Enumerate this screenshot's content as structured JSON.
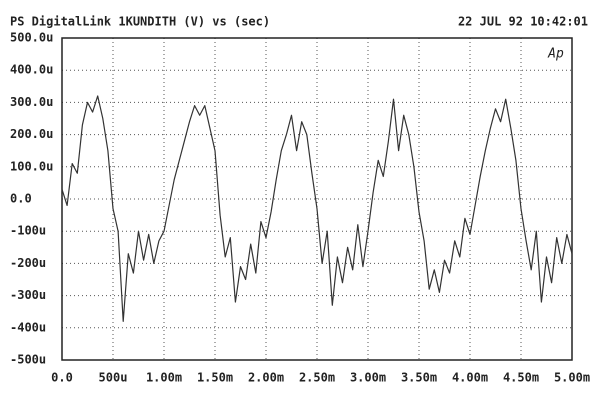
{
  "chart_data": {
    "type": "line",
    "title": "PS DigitalLink 1KUNDITH  (V) vs  (sec)",
    "timestamp": "22 JUL 92 10:42:01",
    "logo": "Ap",
    "grid": true,
    "x": [
      0,
      0.05,
      0.1,
      0.15,
      0.2,
      0.25,
      0.3,
      0.35,
      0.4,
      0.45,
      0.5,
      0.55,
      0.6,
      0.65,
      0.7,
      0.75,
      0.8,
      0.85,
      0.9,
      0.95,
      1,
      1.05,
      1.1,
      1.15,
      1.2,
      1.25,
      1.3,
      1.35,
      1.4,
      1.45,
      1.5,
      1.55,
      1.6,
      1.65,
      1.7,
      1.75,
      1.8,
      1.85,
      1.9,
      1.95,
      2,
      2.05,
      2.1,
      2.15,
      2.2,
      2.25,
      2.3,
      2.35,
      2.4,
      2.45,
      2.5,
      2.55,
      2.6,
      2.65,
      2.7,
      2.75,
      2.8,
      2.85,
      2.9,
      2.95,
      3,
      3.05,
      3.1,
      3.15,
      3.2,
      3.25,
      3.3,
      3.35,
      3.4,
      3.45,
      3.5,
      3.55,
      3.6,
      3.65,
      3.7,
      3.75,
      3.8,
      3.85,
      3.9,
      3.95,
      4,
      4.05,
      4.1,
      4.15,
      4.2,
      4.25,
      4.3,
      4.35,
      4.4,
      4.45,
      4.5,
      4.55,
      4.6,
      4.65,
      4.7,
      4.75,
      4.8,
      4.85,
      4.9,
      4.95,
      5
    ],
    "series": [
      {
        "color": "#333333",
        "values": [
          30,
          -20,
          110,
          80,
          230,
          300,
          270,
          320,
          250,
          150,
          -30,
          -100,
          -380,
          -170,
          -230,
          -100,
          -190,
          -110,
          -200,
          -130,
          -100,
          -20,
          60,
          120,
          180,
          240,
          290,
          260,
          290,
          220,
          150,
          -50,
          -180,
          -120,
          -320,
          -210,
          -250,
          -140,
          -230,
          -70,
          -120,
          -40,
          60,
          150,
          200,
          260,
          150,
          240,
          200,
          80,
          -30,
          -200,
          -100,
          -330,
          -180,
          -260,
          -150,
          -220,
          -80,
          -210,
          -100,
          20,
          120,
          70,
          180,
          310,
          150,
          260,
          200,
          100,
          -40,
          -130,
          -280,
          -220,
          -290,
          -190,
          -230,
          -130,
          -180,
          -60,
          -110,
          -20,
          70,
          150,
          220,
          280,
          240,
          310,
          220,
          120,
          -30,
          -130,
          -220,
          -100,
          -320,
          -180,
          -260,
          -120,
          -200,
          -110,
          -170
        ]
      }
    ],
    "xlim": [
      0,
      5
    ],
    "xticks": [
      {
        "value": 0,
        "label": "0.0"
      },
      {
        "value": 0.5,
        "label": "500u"
      },
      {
        "value": 1,
        "label": "1.00m"
      },
      {
        "value": 1.5,
        "label": "1.50m"
      },
      {
        "value": 2,
        "label": "2.00m"
      },
      {
        "value": 2.5,
        "label": "2.50m"
      },
      {
        "value": 3,
        "label": "3.00m"
      },
      {
        "value": 3.5,
        "label": "3.50m"
      },
      {
        "value": 4,
        "label": "4.00m"
      },
      {
        "value": 4.5,
        "label": "4.50m"
      },
      {
        "value": 5,
        "label": "5.00m"
      }
    ],
    "ylim": [
      -500,
      500
    ],
    "yticks": [
      {
        "value": 500,
        "label": "500.0u"
      },
      {
        "value": 400,
        "label": "400.0u"
      },
      {
        "value": 300,
        "label": "300.0u"
      },
      {
        "value": 200,
        "label": "200.0u"
      },
      {
        "value": 100,
        "label": "100.0u"
      },
      {
        "value": 0,
        "label": "0.0"
      },
      {
        "value": -100,
        "label": "-100u"
      },
      {
        "value": -200,
        "label": "-200u"
      },
      {
        "value": -300,
        "label": "-300u"
      },
      {
        "value": -400,
        "label": "-400u"
      },
      {
        "value": -500,
        "label": "-500u"
      }
    ]
  }
}
